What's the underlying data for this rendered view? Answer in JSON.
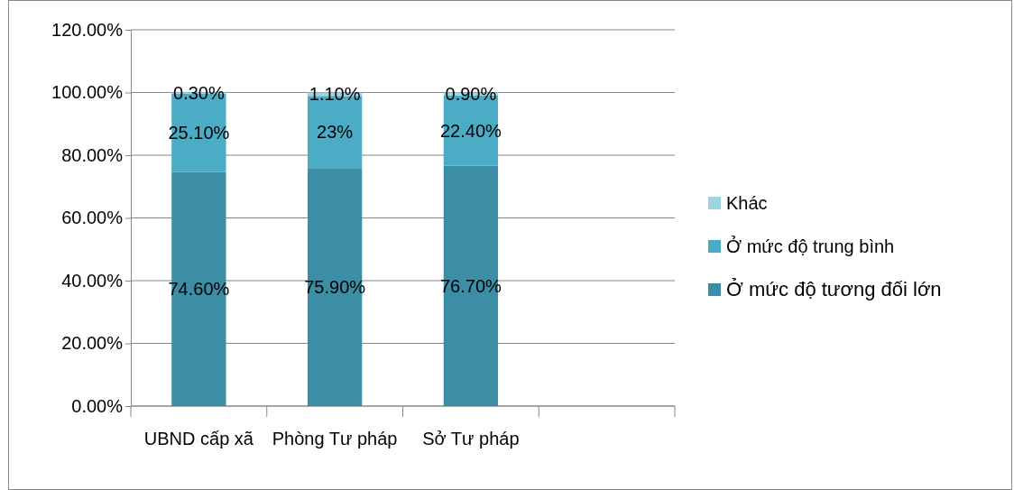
{
  "chart_data": {
    "type": "bar",
    "stacked": true,
    "categories": [
      "UBND cấp xã",
      "Phòng Tư pháp",
      "Sở Tư pháp",
      null
    ],
    "series": [
      {
        "name": "Ở mức độ tương đối lớn",
        "color": "#3b8ea5",
        "values": [
          74.6,
          75.9,
          76.7,
          null
        ],
        "value_labels": [
          "74.60%",
          "75.90%",
          "76.70%",
          null
        ]
      },
      {
        "name": "Ở mức độ trung bình",
        "color": "#4bacc6",
        "values": [
          25.1,
          23,
          22.4,
          null
        ],
        "value_labels": [
          "25.10%",
          "23%",
          "22.40%",
          null
        ]
      },
      {
        "name": "Khác",
        "color": "#9fd3e2",
        "values": [
          0.3,
          1.1,
          0.9,
          null
        ],
        "value_labels": [
          "0.30%",
          "1.10%",
          "0.90%",
          null
        ]
      }
    ],
    "ylim": [
      0,
      120
    ],
    "yticks": [
      {
        "value": 0,
        "label": "0.00%"
      },
      {
        "value": 20,
        "label": "20.00%"
      },
      {
        "value": 40,
        "label": "40.00%"
      },
      {
        "value": 60,
        "label": "60.00%"
      },
      {
        "value": 80,
        "label": "80.00%"
      },
      {
        "value": 100,
        "label": "100.00%"
      },
      {
        "value": 120,
        "label": "120.00%"
      }
    ],
    "grid": "y",
    "legend": "right"
  }
}
